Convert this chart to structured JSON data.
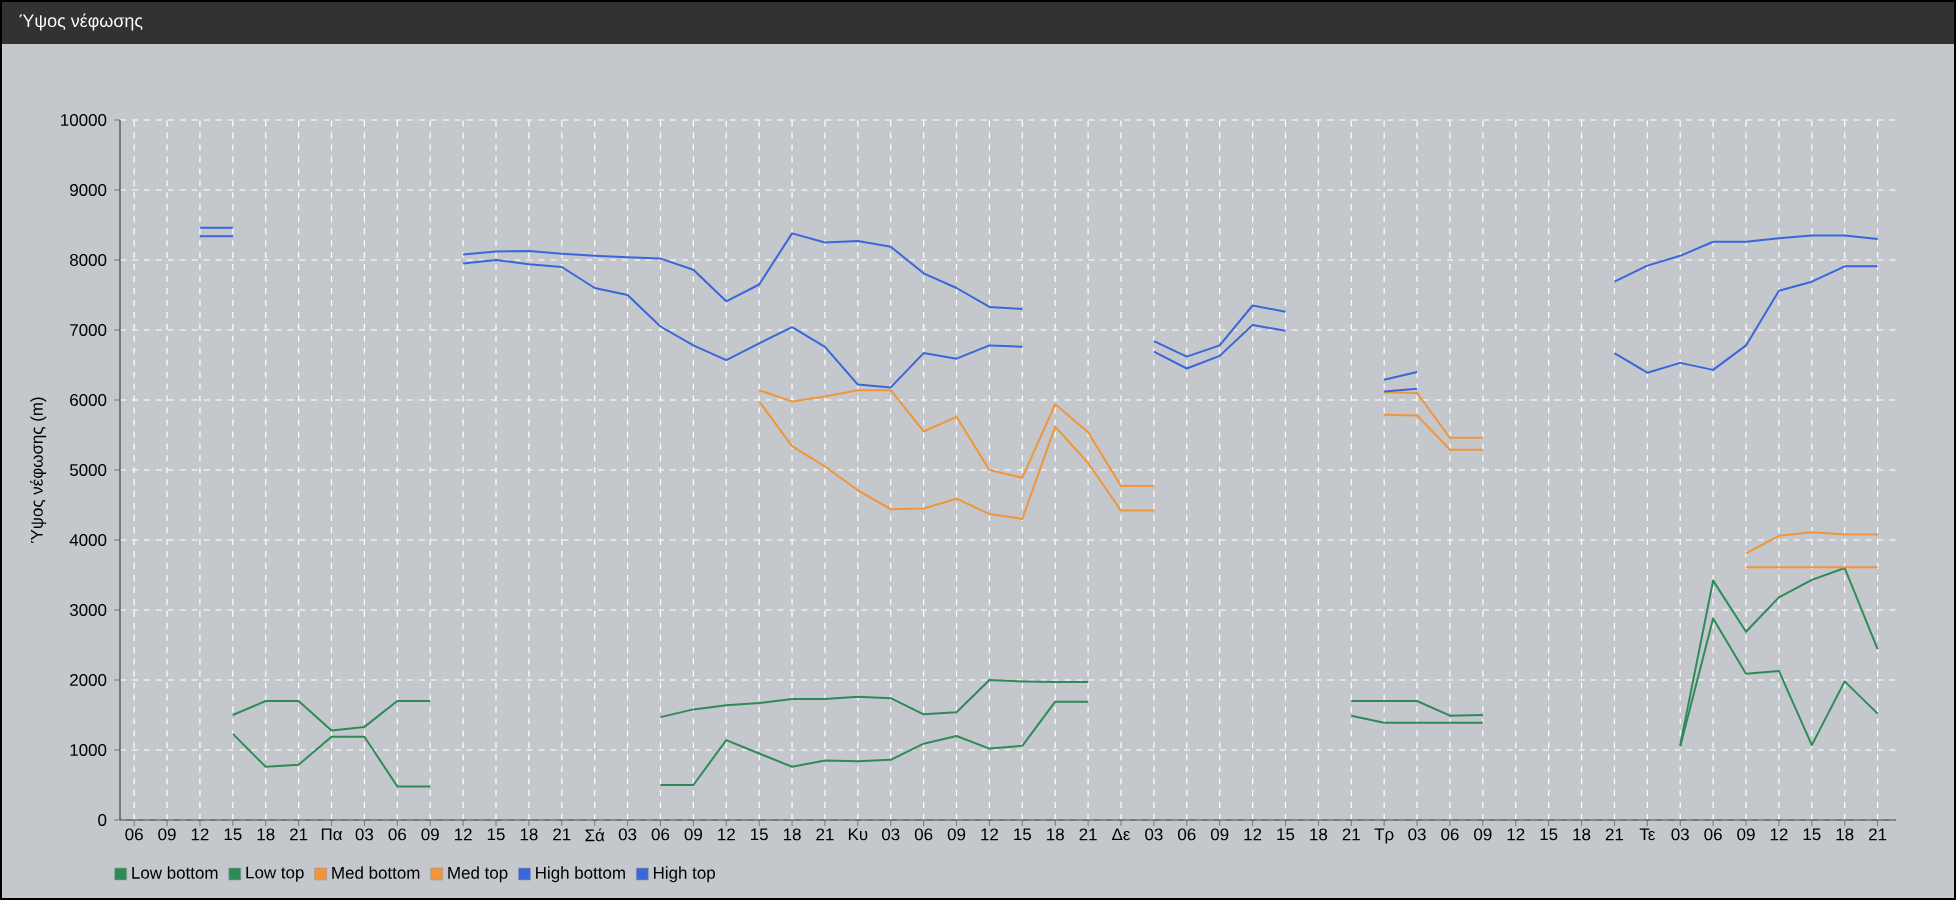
{
  "chart_data": {
    "type": "line",
    "title": "Ύψος νέφωσης",
    "ylabel": "Ύψος νέφωσης (m)",
    "categories": [
      "06",
      "09",
      "12",
      "15",
      "18",
      "21",
      "Πα",
      "03",
      "06",
      "09",
      "12",
      "15",
      "18",
      "21",
      "Σά",
      "03",
      "06",
      "09",
      "12",
      "15",
      "18",
      "21",
      "Κυ",
      "03",
      "06",
      "09",
      "12",
      "15",
      "18",
      "21",
      "Δε",
      "03",
      "06",
      "09",
      "12",
      "15",
      "18",
      "21",
      "Τρ",
      "03",
      "06",
      "09",
      "12",
      "15",
      "18",
      "21",
      "Τε",
      "03",
      "06",
      "09",
      "12",
      "15",
      "18",
      "21"
    ],
    "ylim": [
      0,
      10000
    ],
    "yticks": [
      0,
      1000,
      2000,
      3000,
      4000,
      5000,
      6000,
      7000,
      8000,
      9000,
      10000
    ],
    "grid": true,
    "legend": "bottom left",
    "series": [
      {
        "name": "Low bottom",
        "color": "#2e8b57",
        "values": [
          null,
          null,
          null,
          1230,
          760,
          790,
          1190,
          1190,
          480,
          480,
          null,
          null,
          null,
          null,
          null,
          null,
          500,
          500,
          1140,
          950,
          760,
          850,
          840,
          860,
          1090,
          1200,
          1020,
          1060,
          1690,
          1690,
          null,
          null,
          null,
          null,
          null,
          null,
          null,
          1490,
          1390,
          1390,
          1390,
          1390,
          null,
          null,
          null,
          null,
          null,
          1050,
          2880,
          2090,
          2130,
          1070,
          1980,
          1520
        ]
      },
      {
        "name": "Low top",
        "color": "#2e8b57",
        "values": [
          null,
          null,
          null,
          1500,
          1700,
          1700,
          1280,
          1330,
          1700,
          1700,
          null,
          null,
          null,
          null,
          null,
          null,
          1470,
          1580,
          1640,
          1670,
          1730,
          1730,
          1760,
          1740,
          1510,
          1540,
          2000,
          1980,
          1970,
          1970,
          null,
          null,
          null,
          null,
          null,
          null,
          null,
          1700,
          1700,
          1700,
          1490,
          1500,
          null,
          null,
          null,
          null,
          null,
          1070,
          3420,
          2690,
          3180,
          3430,
          3600,
          2440
        ]
      },
      {
        "name": "Med bottom",
        "color": "#f0953a",
        "values": [
          null,
          null,
          null,
          null,
          null,
          null,
          null,
          null,
          null,
          null,
          null,
          null,
          null,
          null,
          null,
          null,
          null,
          null,
          null,
          5980,
          5340,
          5050,
          4710,
          4440,
          4450,
          4590,
          4370,
          4300,
          5620,
          5100,
          4420,
          4420,
          null,
          null,
          null,
          null,
          null,
          null,
          5790,
          5780,
          5290,
          5290,
          null,
          null,
          null,
          null,
          null,
          null,
          null,
          3610,
          3610,
          3610,
          3610,
          3610
        ]
      },
      {
        "name": "Med top",
        "color": "#f0953a",
        "values": [
          null,
          null,
          null,
          null,
          null,
          null,
          null,
          null,
          null,
          null,
          null,
          null,
          null,
          null,
          null,
          null,
          null,
          null,
          null,
          6140,
          5980,
          6050,
          6140,
          6140,
          5550,
          5760,
          5000,
          4890,
          5940,
          5540,
          4770,
          4770,
          null,
          null,
          null,
          null,
          null,
          null,
          6110,
          6100,
          5460,
          5460,
          null,
          null,
          null,
          null,
          null,
          null,
          null,
          3810,
          4060,
          4110,
          4080,
          4080
        ]
      },
      {
        "name": "High bottom",
        "color": "#3a66d9",
        "values": [
          null,
          null,
          8340,
          8340,
          null,
          null,
          null,
          null,
          null,
          null,
          7950,
          8000,
          7940,
          7900,
          7600,
          7500,
          7050,
          6780,
          6570,
          6810,
          7040,
          6760,
          6220,
          6180,
          6670,
          6590,
          6780,
          6760,
          null,
          null,
          null,
          6690,
          6450,
          6630,
          7070,
          6990,
          null,
          null,
          6120,
          6160,
          null,
          null,
          null,
          null,
          null,
          6670,
          6390,
          6530,
          6430,
          6780,
          7560,
          7690,
          7910,
          7910
        ]
      },
      {
        "name": "High top",
        "color": "#3a66d9",
        "values": [
          null,
          null,
          8460,
          8460,
          null,
          null,
          null,
          null,
          null,
          null,
          8080,
          8120,
          8130,
          8090,
          8060,
          8040,
          8020,
          7860,
          7410,
          7650,
          8380,
          8250,
          8270,
          8190,
          7810,
          7600,
          7330,
          7300,
          null,
          null,
          null,
          6840,
          6620,
          6780,
          7350,
          7260,
          null,
          null,
          6290,
          6400,
          null,
          null,
          null,
          null,
          null,
          7690,
          7920,
          8060,
          8260,
          8260,
          8310,
          8350,
          8350,
          8300
        ]
      }
    ]
  }
}
